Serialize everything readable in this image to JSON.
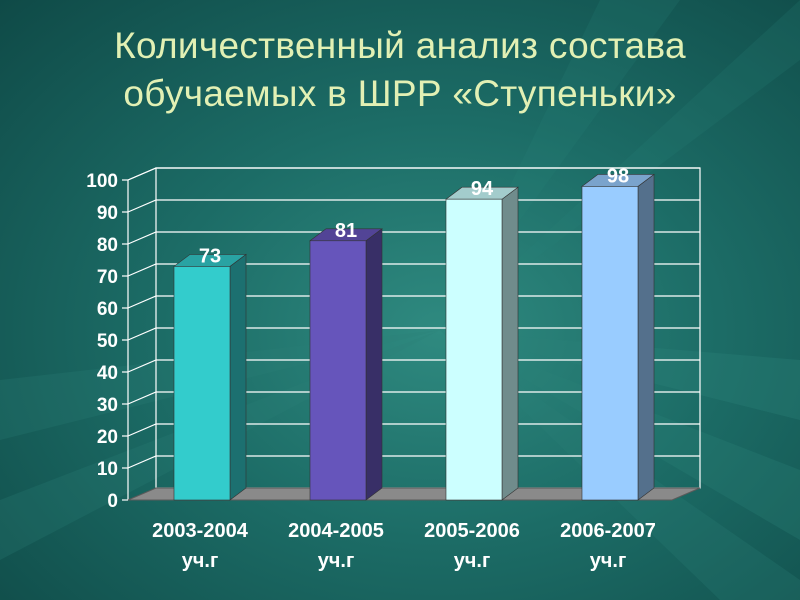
{
  "title": {
    "line1": "Количественный анализ состава",
    "line2": "обучаемых в ШРР «Ступеньки»"
  },
  "colors": {
    "background": "#1c6c66",
    "title": "#e2f0b4",
    "grid": "#ffffff",
    "floor": "#8a8a8a"
  },
  "chart_data": {
    "type": "bar",
    "style": "3d-column",
    "categories": [
      [
        "2003-2004",
        "уч.г"
      ],
      [
        "2004-2005",
        "уч.г"
      ],
      [
        "2005-2006",
        "уч.г"
      ],
      [
        "2006-2007",
        "уч.г"
      ]
    ],
    "values": [
      73,
      81,
      94,
      98
    ],
    "bar_colors": [
      "#33cccc",
      "#6655bb",
      "#ccffff",
      "#99ccff"
    ],
    "ylim": [
      0,
      100
    ],
    "yticks": [
      0,
      10,
      20,
      30,
      40,
      50,
      60,
      70,
      80,
      90,
      100
    ],
    "grid": true,
    "legend": "none"
  }
}
